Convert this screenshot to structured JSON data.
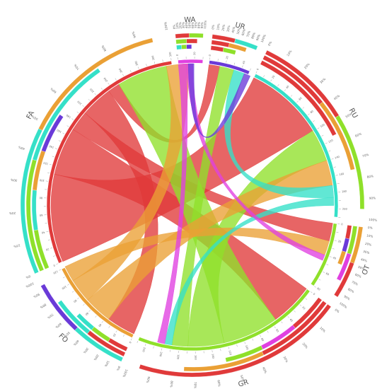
{
  "chart_data": {
    "type": "chord",
    "title": "",
    "colors": {
      "red": "#e03a3a",
      "green": "#8fe02a",
      "orange": "#eaa035",
      "cyan": "#35e0c8",
      "purple": "#6a3ad8",
      "magenta": "#e040e0"
    },
    "segments": [
      {
        "name": "WA",
        "color": "#e040e0",
        "size": 30
      },
      {
        "name": "UR",
        "color": "#6a3ad8",
        "size": 50
      },
      {
        "name": "RU",
        "color": "#35e0c8",
        "size": 210
      },
      {
        "name": "OT",
        "color": "#8fe02a",
        "size": 80
      },
      {
        "name": "GR",
        "color": "#8fe02a",
        "size": 230
      },
      {
        "name": "FO",
        "color": "#eaa035",
        "size": 120
      },
      {
        "name": "FA",
        "color": "#e03a3a",
        "size": 320
      }
    ],
    "flows": [
      {
        "from": "FA",
        "to": "RU",
        "value": 110,
        "color": "#e03a3a"
      },
      {
        "from": "FA",
        "to": "GR",
        "value": 60,
        "color": "#e03a3a"
      },
      {
        "from": "FA",
        "to": "OT",
        "value": 25,
        "color": "#e03a3a"
      },
      {
        "from": "FA",
        "to": "FO",
        "value": 40,
        "color": "#e03a3a"
      },
      {
        "from": "FA",
        "to": "UR",
        "value": 15,
        "color": "#e03a3a"
      },
      {
        "from": "GR",
        "to": "FA",
        "value": 70,
        "color": "#8fe02a"
      },
      {
        "from": "GR",
        "to": "RU",
        "value": 45,
        "color": "#8fe02a"
      },
      {
        "from": "GR",
        "to": "UR",
        "value": 20,
        "color": "#8fe02a"
      },
      {
        "from": "FO",
        "to": "RU",
        "value": 35,
        "color": "#eaa035"
      },
      {
        "from": "FO",
        "to": "FA",
        "value": 30,
        "color": "#eaa035"
      },
      {
        "from": "FO",
        "to": "OT",
        "value": 20,
        "color": "#eaa035"
      },
      {
        "from": "RU",
        "to": "UR",
        "value": 15,
        "color": "#35e0c8"
      },
      {
        "from": "RU",
        "to": "GR",
        "value": 10,
        "color": "#35e0c8"
      },
      {
        "from": "WA",
        "to": "GR",
        "value": 10,
        "color": "#e040e0"
      },
      {
        "from": "WA",
        "to": "OT",
        "value": 8,
        "color": "#e040e0"
      },
      {
        "from": "UR",
        "to": "FA",
        "value": 8,
        "color": "#6a3ad8"
      }
    ],
    "percent_ticks": [
      "0%",
      "10%",
      "20%",
      "30%",
      "40%",
      "50%",
      "60%",
      "70%",
      "80%",
      "90%",
      "100%"
    ],
    "outer_bars": [
      {
        "segment": "WA",
        "layers": [
          [
            "#35e0c8",
            "#8fe02a",
            "#6a3ad8"
          ],
          [
            "#8fe02a",
            "#e03a3a"
          ],
          [
            "#e03a3a",
            "#8fe02a"
          ]
        ]
      },
      {
        "segment": "UR",
        "layers": [
          [
            "#e03a3a",
            "#8fe02a"
          ],
          [
            "#e03a3a",
            "#eaa035"
          ],
          [
            "#e03a3a",
            "#35e0c8"
          ]
        ]
      },
      {
        "segment": "RU",
        "layers": [
          [
            "#e03a3a"
          ],
          [
            "#e03a3a",
            "#eaa035"
          ],
          [
            "#e03a3a",
            "#8fe02a"
          ]
        ]
      },
      {
        "segment": "OT",
        "layers": [
          [
            "#e03a3a",
            "#6a3ad8",
            "#eaa035"
          ],
          [
            "#8fe02a",
            "#e040e0"
          ],
          [
            "#eaa035",
            "#e03a3a"
          ]
        ]
      },
      {
        "segment": "GR",
        "layers": [
          [
            "#e03a3a",
            "#e040e0",
            "#8fe02a"
          ],
          [
            "#e03a3a",
            "#eaa035"
          ],
          [
            "#e03a3a"
          ]
        ]
      },
      {
        "segment": "FO",
        "layers": [
          [
            "#e03a3a",
            "#8fe02a",
            "#35e0c8"
          ],
          [
            "#e03a3a",
            "#35e0c8"
          ],
          [
            "#35e0c8",
            "#6a3ad8"
          ]
        ]
      },
      {
        "segment": "FA",
        "layers": [
          [
            "#8fe02a",
            "#35e0c8",
            "#eaa035",
            "#6a3ad8"
          ],
          [
            "#8fe02a",
            "#35e0c8"
          ],
          [
            "#35e0c8",
            "#eaa035"
          ]
        ]
      }
    ]
  }
}
